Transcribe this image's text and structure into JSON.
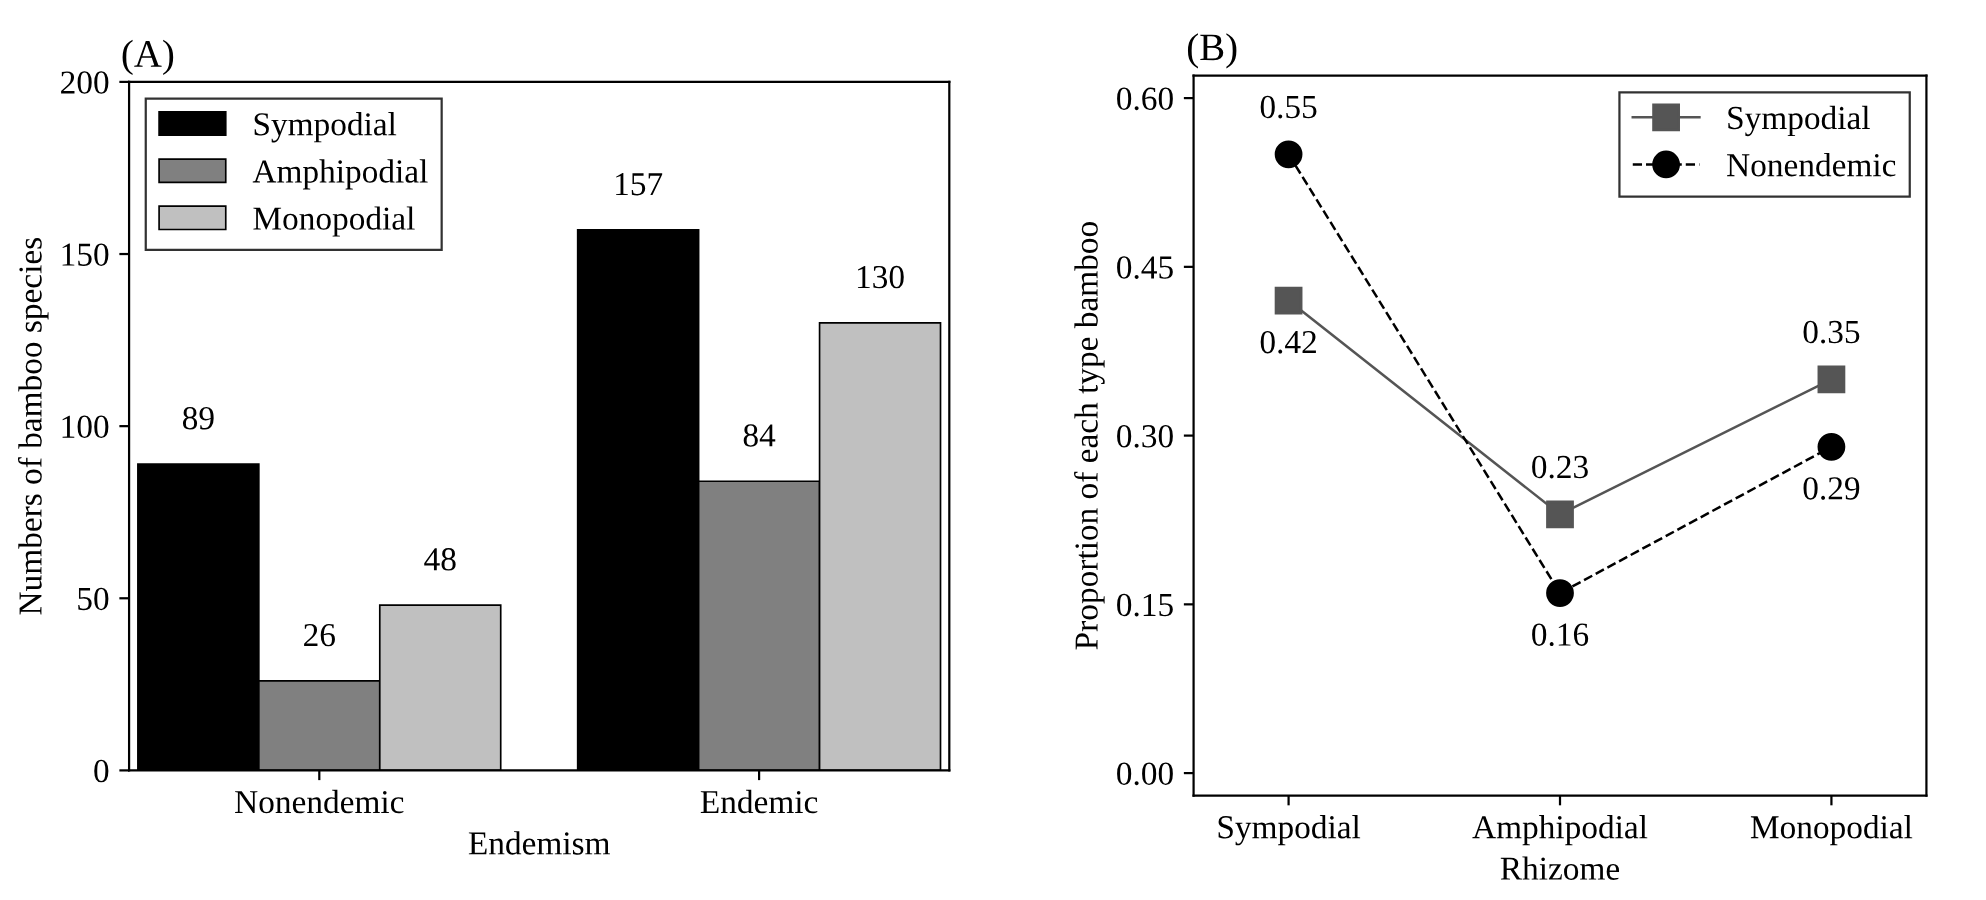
{
  "chart_data": [
    {
      "type": "bar",
      "title": "(A)",
      "xlabel": "Endemism",
      "ylabel": "Numbers of bamboo species",
      "categories": [
        "Nonendemic",
        "Endemic"
      ],
      "series": [
        {
          "name": "Sympodial",
          "color": "#000000",
          "values": [
            89,
            157
          ]
        },
        {
          "name": "Amphipodial",
          "color": "#808080",
          "values": [
            26,
            84
          ]
        },
        {
          "name": "Monopodial",
          "color": "#c0c0c0",
          "values": [
            48,
            130
          ]
        }
      ],
      "ylim": [
        0,
        200
      ],
      "yticks": [
        0,
        50,
        100,
        150,
        200
      ],
      "data_labels": true,
      "legend": "top left",
      "grid": false
    },
    {
      "type": "line",
      "title": "(B)",
      "xlabel": "Rhizome",
      "ylabel": "Proportion of each type bamboo",
      "categories": [
        "Sympodial",
        "Amphipodial",
        "Monopodial"
      ],
      "series": [
        {
          "name": "Sympodial",
          "color": "#555555",
          "values": [
            0.42,
            0.23,
            0.35
          ],
          "marker": "square",
          "line_style": "solid"
        },
        {
          "name": "Nonendemic",
          "color": "#000000",
          "values": [
            0.55,
            0.16,
            0.29
          ],
          "marker": "circle",
          "line_style": "dashed"
        }
      ],
      "ylim": [
        -0.02,
        0.62
      ],
      "yticks": [
        {
          "value": 0,
          "label": "0.00"
        },
        {
          "value": 0.15,
          "label": "0.15"
        },
        {
          "value": 0.3,
          "label": "0.30"
        },
        {
          "value": 0.45,
          "label": "0.45"
        },
        {
          "value": 0.6,
          "label": "0.60"
        }
      ],
      "data_labels": true,
      "legend": "top right",
      "grid": false
    }
  ]
}
